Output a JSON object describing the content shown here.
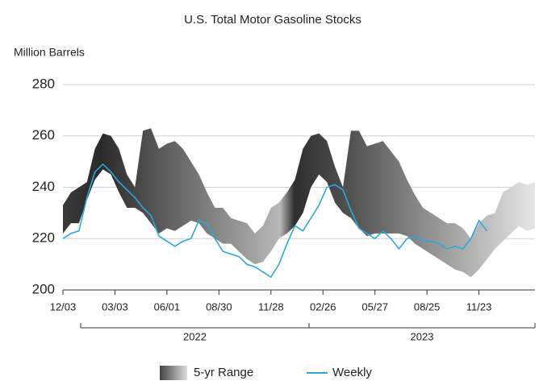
{
  "chart_data": {
    "type": "line",
    "title": "U.S. Total Motor Gasoline Stocks",
    "y_label": "Million Barrels",
    "x": [
      0,
      2,
      4,
      6,
      8,
      10,
      12,
      14,
      16,
      18,
      20,
      22,
      24,
      26,
      28,
      30,
      32,
      34,
      36,
      38,
      40,
      42,
      44,
      46,
      48,
      50,
      52,
      54,
      56,
      58,
      60,
      62,
      64,
      66,
      68,
      70,
      72,
      74,
      76,
      78,
      80,
      82,
      84,
      86,
      88,
      90,
      92,
      94,
      96,
      98,
      100,
      102,
      104,
      106,
      108,
      110,
      112,
      114,
      116,
      118
    ],
    "xlim": [
      0,
      118
    ],
    "xticks": [
      {
        "value": 0,
        "label": "12/03"
      },
      {
        "value": 13,
        "label": "03/03"
      },
      {
        "value": 26,
        "label": "06/01"
      },
      {
        "value": 39,
        "label": "08/30"
      },
      {
        "value": 52,
        "label": "11/28"
      },
      {
        "value": 65,
        "label": "02/26"
      },
      {
        "value": 78,
        "label": "05/27"
      },
      {
        "value": 91,
        "label": "08/25"
      },
      {
        "value": 104,
        "label": "11/23"
      }
    ],
    "year_groups": [
      "2022",
      "2023"
    ],
    "ylim": [
      200,
      280
    ],
    "yticks": [
      200,
      220,
      240,
      260,
      280
    ],
    "grid": true,
    "series": [
      {
        "name": "5-yr Range",
        "kind": "range",
        "low": [
          222,
          226,
          226,
          235,
          243,
          247,
          245,
          238,
          232,
          232,
          230,
          226,
          222,
          224,
          223,
          225,
          227,
          226,
          222,
          220,
          218,
          218,
          215,
          212,
          210,
          211,
          215,
          220,
          222,
          225,
          230,
          240,
          245,
          242,
          234,
          230,
          228,
          224,
          221,
          222,
          222,
          222,
          222,
          221,
          218,
          216,
          214,
          212,
          210,
          208,
          207,
          205,
          208,
          212,
          216,
          219,
          222,
          225,
          223,
          224
        ],
        "high": [
          233,
          238,
          240,
          242,
          255,
          261,
          260,
          255,
          245,
          240,
          262,
          263,
          255,
          257,
          258,
          255,
          250,
          245,
          238,
          232,
          232,
          228,
          227,
          226,
          222,
          225,
          232,
          234,
          238,
          243,
          255,
          260,
          261,
          258,
          248,
          240,
          262,
          262,
          256,
          257,
          258,
          254,
          250,
          243,
          237,
          232,
          230,
          228,
          226,
          226,
          224,
          220,
          226,
          229,
          230,
          238,
          240,
          242,
          241,
          242
        ]
      },
      {
        "name": "Weekly",
        "color": "#29a8e0",
        "values": [
          220,
          222,
          223,
          236,
          246,
          249,
          246,
          242,
          239,
          236,
          232,
          229,
          221,
          219,
          217,
          219,
          220,
          227,
          226,
          220,
          215,
          214,
          213,
          210,
          209,
          207,
          205,
          210,
          218,
          225,
          223,
          228,
          233,
          240,
          241,
          239,
          231,
          224,
          222,
          220,
          223,
          220,
          216,
          220,
          221,
          219,
          219,
          218,
          216,
          217,
          216,
          220,
          227,
          223,
          null,
          null,
          null,
          null,
          null,
          null
        ]
      }
    ]
  }
}
